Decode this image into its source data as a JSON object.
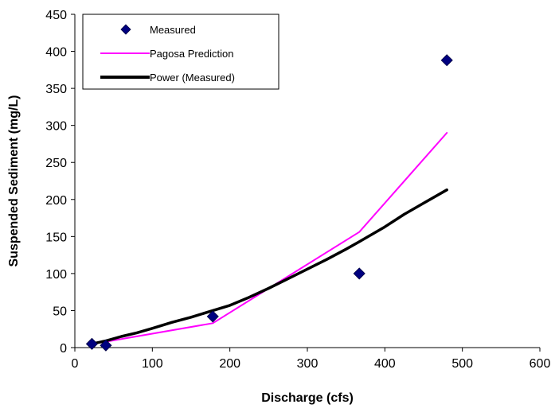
{
  "chart_data": {
    "type": "scatter",
    "xlabel": "Discharge (cfs)",
    "ylabel": "Suspended Sediment (mg/L)",
    "xlim": [
      0,
      600
    ],
    "ylim": [
      0,
      450
    ],
    "xticks": [
      0,
      100,
      200,
      300,
      400,
      500,
      600
    ],
    "yticks": [
      0,
      50,
      100,
      150,
      200,
      250,
      300,
      350,
      400,
      450
    ],
    "grid": false,
    "legend": "top-left",
    "series": [
      {
        "name": "Measured",
        "kind": "markers",
        "marker": "diamond",
        "color": "#000080",
        "points": [
          [
            22,
            5
          ],
          [
            40,
            3
          ],
          [
            178,
            42
          ],
          [
            367,
            100
          ],
          [
            480,
            388
          ]
        ]
      },
      {
        "name": "Pagosa Prediction",
        "kind": "line",
        "color": "#FF00FF",
        "points": [
          [
            22,
            5
          ],
          [
            40,
            8
          ],
          [
            178,
            33
          ],
          [
            367,
            156
          ],
          [
            480,
            290
          ]
        ]
      },
      {
        "name": "Power (Measured)",
        "kind": "line",
        "color": "#000000",
        "points": [
          [
            22,
            5
          ],
          [
            40,
            9
          ],
          [
            60,
            15
          ],
          [
            80,
            20
          ],
          [
            100,
            26
          ],
          [
            125,
            34
          ],
          [
            150,
            41
          ],
          [
            178,
            50
          ],
          [
            200,
            57
          ],
          [
            225,
            68
          ],
          [
            250,
            80
          ],
          [
            275,
            93
          ],
          [
            300,
            106
          ],
          [
            325,
            119
          ],
          [
            350,
            133
          ],
          [
            367,
            143
          ],
          [
            400,
            163
          ],
          [
            425,
            180
          ],
          [
            450,
            195
          ],
          [
            480,
            213
          ]
        ]
      }
    ]
  }
}
